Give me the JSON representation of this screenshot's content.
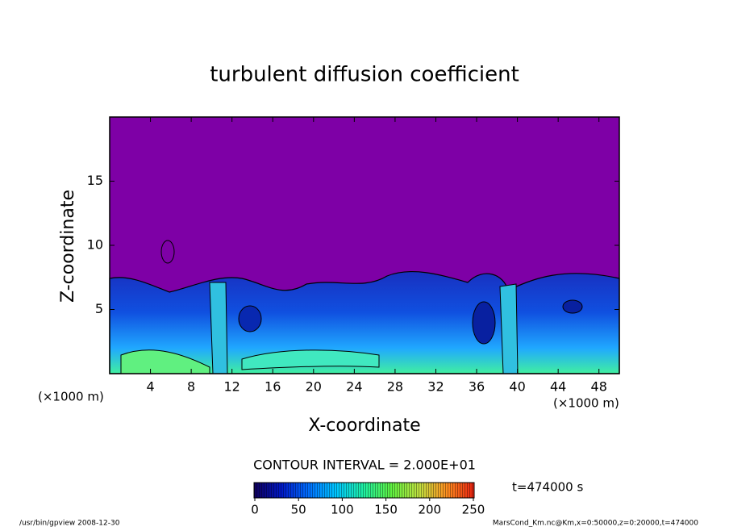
{
  "chart_data": {
    "type": "contour",
    "title": "turbulent diffusion coefficient",
    "x_label": "X-coordinate",
    "y_label": "Z-coordinate",
    "x_unit": "(×1000 m)",
    "y_unit": "(×1000 m)",
    "xlim": [
      0,
      50
    ],
    "xticks": [
      4,
      8,
      12,
      16,
      20,
      24,
      28,
      32,
      36,
      40,
      44,
      48
    ],
    "ylim": [
      0,
      20
    ],
    "yticks": [
      5,
      10,
      15
    ],
    "contour_interval": "CONTOUR INTERVAL = 2.000E+01",
    "time_label": "t=474000 s",
    "colorbar": {
      "lim": [
        0,
        250
      ],
      "ticks": [
        0,
        50,
        100,
        150,
        200,
        250
      ],
      "colors": [
        "#10005a",
        "#0018c8",
        "#0070ff",
        "#00c8ff",
        "#20f0a0",
        "#60f040",
        "#c0e040",
        "#ff9020",
        "#e82010"
      ]
    },
    "footer_left": "/usr/bin/gpview   2008-12-30",
    "footer_right": "MarsCond_Km.nc@Km,x=0:50000,z=0:20000,t=474000"
  }
}
